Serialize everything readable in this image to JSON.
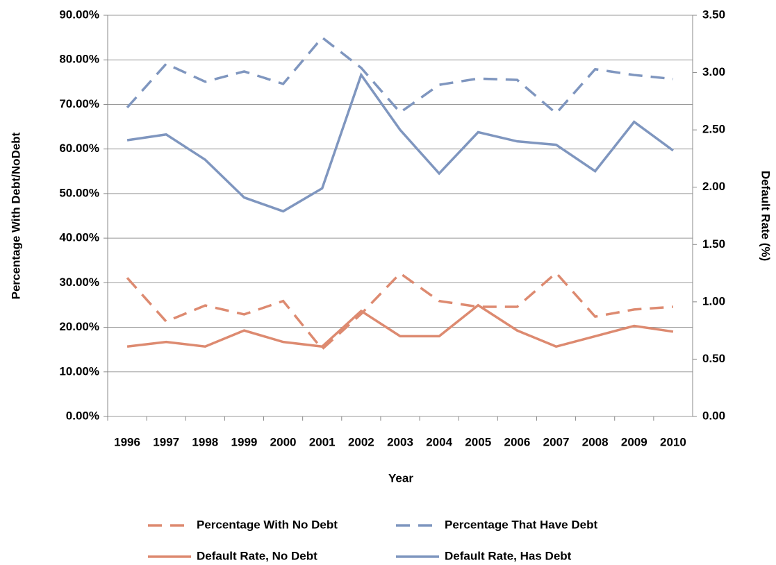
{
  "chart_data": {
    "type": "line",
    "x_label": "Year",
    "y_label": "Percentage With Debt/NoDebt",
    "y2_label": "Default Rate (%)",
    "categories": [
      "1996",
      "1997",
      "1998",
      "1999",
      "2000",
      "2001",
      "2002",
      "2003",
      "2004",
      "2005",
      "2006",
      "2007",
      "2008",
      "2009",
      "2010"
    ],
    "ylim": [
      0,
      90
    ],
    "yticks": [
      {
        "value": 0,
        "label": "0.00%"
      },
      {
        "value": 10,
        "label": "10.00%"
      },
      {
        "value": 20,
        "label": "20.00%"
      },
      {
        "value": 30,
        "label": "30.00%"
      },
      {
        "value": 40,
        "label": "40.00%"
      },
      {
        "value": 50,
        "label": "50.00%"
      },
      {
        "value": 60,
        "label": "60.00%"
      },
      {
        "value": 70,
        "label": "70.00%"
      },
      {
        "value": 80,
        "label": "80.00%"
      },
      {
        "value": 90,
        "label": "90.00%"
      }
    ],
    "y2lim": [
      0,
      3.5
    ],
    "y2ticks": [
      {
        "value": 0,
        "label": "0.00"
      },
      {
        "value": 0.5,
        "label": "0.50"
      },
      {
        "value": 1,
        "label": "1.00"
      },
      {
        "value": 1.5,
        "label": "1.50"
      },
      {
        "value": 2,
        "label": "2.00"
      },
      {
        "value": 2.5,
        "label": "2.50"
      },
      {
        "value": 3,
        "label": "3.00"
      },
      {
        "value": 3.5,
        "label": "3.50"
      }
    ],
    "grid": true,
    "series": [
      {
        "name": "Percentage With No Debt",
        "color": "#dd8a70",
        "dashed": true,
        "values": [
          31.1,
          21.3,
          24.9,
          22.9,
          25.9,
          15.1,
          23.0,
          32.1,
          25.9,
          24.6,
          24.6,
          32.2,
          22.4,
          24.0,
          24.6
        ]
      },
      {
        "name": "Percentage That Have Debt",
        "color": "#7f96bf",
        "dashed": true,
        "values": [
          69.3,
          79.1,
          75.1,
          77.4,
          74.6,
          85.0,
          78.2,
          68.2,
          74.4,
          75.8,
          75.5,
          68.0,
          77.9,
          76.6,
          75.7
        ]
      },
      {
        "name": "Default Rate, No Debt",
        "color": "#dd8a70",
        "dashed": false,
        "axis": "y2",
        "values": [
          0.61,
          0.65,
          0.61,
          0.75,
          0.65,
          0.61,
          0.92,
          0.7,
          0.7,
          0.97,
          0.75,
          0.61,
          0.7,
          0.79,
          0.74
        ]
      },
      {
        "name": "Default Rate, Has Debt",
        "color": "#7f96bf",
        "dashed": false,
        "axis": "y2",
        "values": [
          2.41,
          2.46,
          2.24,
          1.91,
          1.79,
          1.99,
          2.98,
          2.5,
          2.12,
          2.48,
          2.4,
          2.37,
          2.14,
          2.57,
          2.32
        ]
      }
    ]
  }
}
